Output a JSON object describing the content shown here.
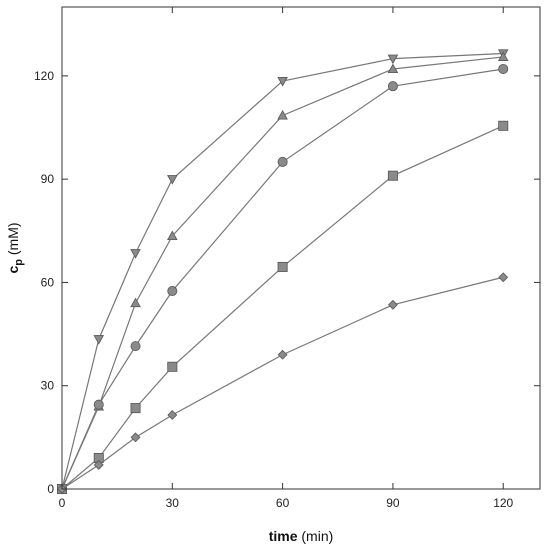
{
  "chart_data": {
    "type": "line",
    "title": "",
    "xlabel": {
      "main": "time",
      "unit": " (min)"
    },
    "ylabel": {
      "main": "c",
      "sub": "p",
      "unit": " (mM)"
    },
    "xlim": [
      0,
      130
    ],
    "ylim": [
      0,
      140
    ],
    "xticks": [
      0,
      30,
      60,
      90,
      120
    ],
    "yticks": [
      0,
      30,
      60,
      90,
      120
    ],
    "grid": false,
    "legend": "none",
    "series": [
      {
        "marker": "triangle-down",
        "color": "#8a8a8a",
        "x": [
          0,
          10,
          20,
          30,
          60,
          90,
          120
        ],
        "y": [
          0,
          43.5,
          68.5,
          90,
          118.5,
          125,
          126.5
        ]
      },
      {
        "marker": "triangle-up",
        "color": "#8a8a8a",
        "x": [
          0,
          10,
          20,
          30,
          60,
          90,
          120
        ],
        "y": [
          0,
          24,
          54,
          73.5,
          108.5,
          122,
          125.5
        ]
      },
      {
        "marker": "circle",
        "color": "#8a8a8a",
        "x": [
          0,
          10,
          20,
          30,
          60,
          90,
          120
        ],
        "y": [
          0,
          24.5,
          41.5,
          57.5,
          95,
          117,
          122
        ]
      },
      {
        "marker": "square",
        "color": "#8a8a8a",
        "x": [
          0,
          10,
          20,
          30,
          60,
          90,
          120
        ],
        "y": [
          0,
          9,
          23.5,
          35.5,
          64.5,
          91,
          105.5
        ]
      },
      {
        "marker": "diamond",
        "color": "#8a8a8a",
        "x": [
          0,
          10,
          20,
          30,
          60,
          90,
          120
        ],
        "y": [
          0,
          7,
          15,
          21.5,
          39,
          53.5,
          61.5
        ]
      }
    ]
  }
}
